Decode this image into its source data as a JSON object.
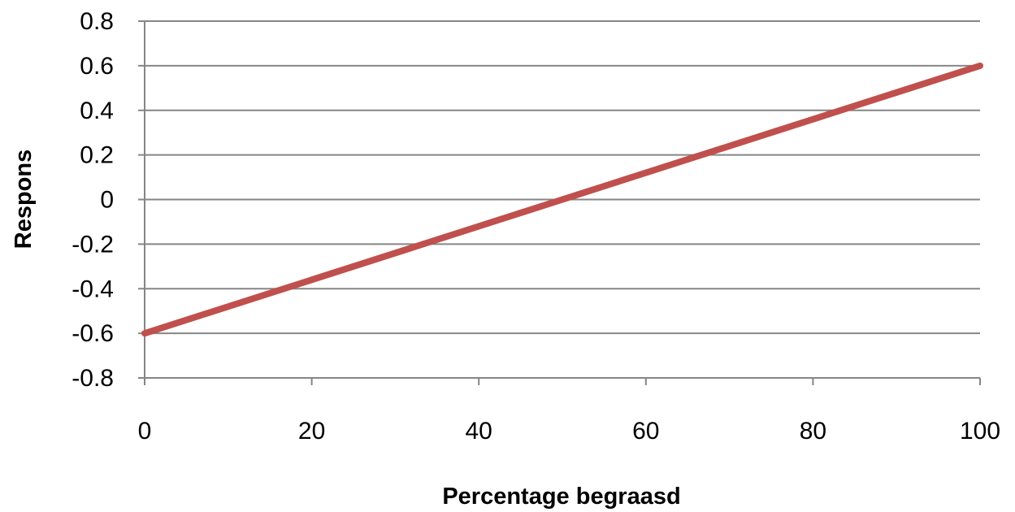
{
  "chart_data": {
    "type": "line",
    "xlabel": "Percentage begraasd",
    "ylabel": "Respons",
    "xlim": [
      0,
      100
    ],
    "ylim": [
      -0.8,
      0.8
    ],
    "x_ticks": [
      "0",
      "20",
      "40",
      "60",
      "80",
      "100"
    ],
    "y_ticks": [
      "0.8",
      "0.6",
      "0.4",
      "0.2",
      "0",
      "-0.2",
      "-0.4",
      "-0.6",
      "-0.8"
    ],
    "grid": true,
    "series": [
      {
        "color": "#c0504d",
        "x": [
          0,
          100
        ],
        "y": [
          -0.6,
          0.6
        ]
      }
    ]
  }
}
